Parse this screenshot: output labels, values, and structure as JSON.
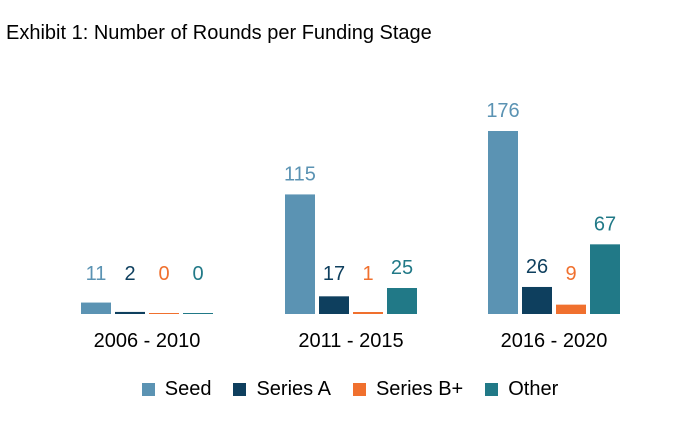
{
  "chart_data": {
    "type": "bar",
    "title": "Exhibit 1: Number of Rounds per Funding Stage",
    "xlabel": "",
    "ylabel": "",
    "categories": [
      "2006 - 2010",
      "2011 - 2015",
      "2016 - 2020"
    ],
    "series": [
      {
        "name": "Seed",
        "color": "#5b93b3",
        "values": [
          11,
          115,
          176
        ]
      },
      {
        "name": "Series A",
        "color": "#0e3f5e",
        "values": [
          2,
          17,
          26
        ]
      },
      {
        "name": "Series B+",
        "color": "#f0702e",
        "values": [
          0,
          1,
          9
        ]
      },
      {
        "name": "Other",
        "color": "#217987",
        "values": [
          0,
          25,
          67
        ]
      }
    ],
    "ylim": [
      0,
      176
    ],
    "grid": false,
    "legend": "bottom",
    "data_labels": true
  }
}
